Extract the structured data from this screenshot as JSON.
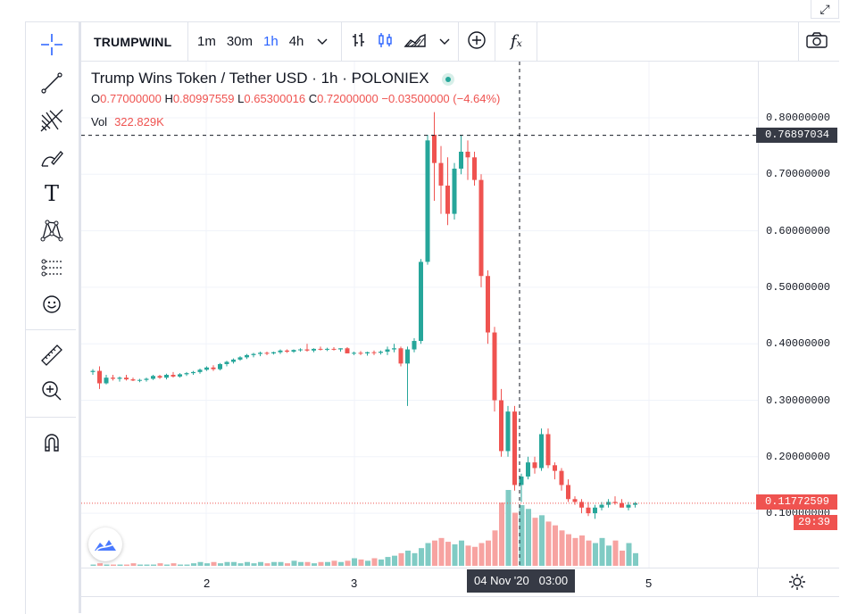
{
  "toolbar": {
    "symbol": "TRUMPWINL",
    "intervals": [
      {
        "label": "1m",
        "active": false
      },
      {
        "label": "30m",
        "active": false
      },
      {
        "label": "1h",
        "active": true
      },
      {
        "label": "4h",
        "active": false
      }
    ],
    "icons": [
      "chevron-down-icon",
      "bar-chart-icon",
      "candlestick-icon",
      "area-chart-icon",
      "chevron-down-icon",
      "add-compare-icon",
      "indicators-fx-icon",
      "camera-icon"
    ],
    "fx_label": "fₓ"
  },
  "sidebar": {
    "tools": [
      "crosshair-icon",
      "trend-line-icon",
      "fib-icon",
      "brush-icon",
      "text-icon",
      "pattern-icon",
      "forecast-icon",
      "emoji-icon",
      "ruler-icon",
      "zoom-in-icon",
      "magnet-icon"
    ],
    "text_tool_label": "T"
  },
  "legend": {
    "title": "Trump Wins Token / Tether USD · 1h · POLONIEX",
    "o_label": "O",
    "o": "0.77000000",
    "h_label": "H",
    "h": "0.80997559",
    "l_label": "L",
    "l": "0.65300016",
    "c_label": "C",
    "c": "0.72000000",
    "change": "−0.03500000 (−4.64%)",
    "vol_label": "Vol",
    "vol": "322.829K"
  },
  "price_axis": {
    "ticks": [
      "0.80000000",
      "0.70000000",
      "0.60000000",
      "0.50000000",
      "0.40000000",
      "0.30000000",
      "0.20000000",
      "0.10000000"
    ],
    "crosshair_price": "0.76897034",
    "last_price": "0.11772599",
    "countdown": "29:39"
  },
  "time_axis": {
    "ticks": [
      "2",
      "3",
      "5"
    ],
    "crosshair_time": "04 Nov '20",
    "crosshair_hour": "03:00"
  },
  "colors": {
    "up": "#26a69a",
    "down": "#ef5350",
    "vol_up": "#80cbc4",
    "vol_down": "#f7a3a1",
    "accent": "#2962ff"
  },
  "chart_data": {
    "type": "candlestick",
    "symbol": "TRUMPWINL",
    "interval": "1h",
    "exchange": "POLONIEX",
    "ylim": [
      0.0,
      0.86
    ],
    "candles": [
      {
        "o": 0.35,
        "h": 0.355,
        "l": 0.345,
        "c": 0.352
      },
      {
        "o": 0.352,
        "h": 0.36,
        "l": 0.32,
        "c": 0.33
      },
      {
        "o": 0.33,
        "h": 0.345,
        "l": 0.328,
        "c": 0.34
      },
      {
        "o": 0.34,
        "h": 0.345,
        "l": 0.335,
        "c": 0.338
      },
      {
        "o": 0.338,
        "h": 0.342,
        "l": 0.333,
        "c": 0.34
      },
      {
        "o": 0.34,
        "h": 0.345,
        "l": 0.335,
        "c": 0.337
      },
      {
        "o": 0.337,
        "h": 0.34,
        "l": 0.334,
        "c": 0.335
      },
      {
        "o": 0.335,
        "h": 0.338,
        "l": 0.332,
        "c": 0.336
      },
      {
        "o": 0.336,
        "h": 0.34,
        "l": 0.333,
        "c": 0.338
      },
      {
        "o": 0.338,
        "h": 0.345,
        "l": 0.336,
        "c": 0.343
      },
      {
        "o": 0.343,
        "h": 0.345,
        "l": 0.338,
        "c": 0.34
      },
      {
        "o": 0.34,
        "h": 0.347,
        "l": 0.337,
        "c": 0.345
      },
      {
        "o": 0.345,
        "h": 0.35,
        "l": 0.34,
        "c": 0.342
      },
      {
        "o": 0.342,
        "h": 0.348,
        "l": 0.34,
        "c": 0.346
      },
      {
        "o": 0.346,
        "h": 0.35,
        "l": 0.343,
        "c": 0.348
      },
      {
        "o": 0.348,
        "h": 0.352,
        "l": 0.345,
        "c": 0.35
      },
      {
        "o": 0.35,
        "h": 0.356,
        "l": 0.347,
        "c": 0.354
      },
      {
        "o": 0.354,
        "h": 0.36,
        "l": 0.352,
        "c": 0.358
      },
      {
        "o": 0.358,
        "h": 0.362,
        "l": 0.352,
        "c": 0.355
      },
      {
        "o": 0.355,
        "h": 0.366,
        "l": 0.353,
        "c": 0.364
      },
      {
        "o": 0.364,
        "h": 0.37,
        "l": 0.36,
        "c": 0.368
      },
      {
        "o": 0.368,
        "h": 0.374,
        "l": 0.365,
        "c": 0.372
      },
      {
        "o": 0.372,
        "h": 0.378,
        "l": 0.37,
        "c": 0.376
      },
      {
        "o": 0.376,
        "h": 0.382,
        "l": 0.373,
        "c": 0.38
      },
      {
        "o": 0.38,
        "h": 0.384,
        "l": 0.376,
        "c": 0.382
      },
      {
        "o": 0.382,
        "h": 0.386,
        "l": 0.378,
        "c": 0.384
      },
      {
        "o": 0.384,
        "h": 0.386,
        "l": 0.38,
        "c": 0.383
      },
      {
        "o": 0.383,
        "h": 0.386,
        "l": 0.381,
        "c": 0.385
      },
      {
        "o": 0.385,
        "h": 0.39,
        "l": 0.382,
        "c": 0.388
      },
      {
        "o": 0.388,
        "h": 0.39,
        "l": 0.384,
        "c": 0.386
      },
      {
        "o": 0.386,
        "h": 0.39,
        "l": 0.384,
        "c": 0.389
      },
      {
        "o": 0.389,
        "h": 0.392,
        "l": 0.386,
        "c": 0.39
      },
      {
        "o": 0.39,
        "h": 0.4,
        "l": 0.386,
        "c": 0.388
      },
      {
        "o": 0.388,
        "h": 0.392,
        "l": 0.385,
        "c": 0.391
      },
      {
        "o": 0.391,
        "h": 0.395,
        "l": 0.388,
        "c": 0.39
      },
      {
        "o": 0.39,
        "h": 0.393,
        "l": 0.387,
        "c": 0.391
      },
      {
        "o": 0.391,
        "h": 0.394,
        "l": 0.388,
        "c": 0.39
      },
      {
        "o": 0.39,
        "h": 0.392,
        "l": 0.386,
        "c": 0.392
      },
      {
        "o": 0.392,
        "h": 0.394,
        "l": 0.384,
        "c": 0.383
      },
      {
        "o": 0.383,
        "h": 0.386,
        "l": 0.38,
        "c": 0.384
      },
      {
        "o": 0.384,
        "h": 0.387,
        "l": 0.38,
        "c": 0.383
      },
      {
        "o": 0.383,
        "h": 0.386,
        "l": 0.379,
        "c": 0.385
      },
      {
        "o": 0.385,
        "h": 0.388,
        "l": 0.38,
        "c": 0.384
      },
      {
        "o": 0.384,
        "h": 0.388,
        "l": 0.381,
        "c": 0.386
      },
      {
        "o": 0.386,
        "h": 0.395,
        "l": 0.38,
        "c": 0.39
      },
      {
        "o": 0.39,
        "h": 0.4,
        "l": 0.385,
        "c": 0.392
      },
      {
        "o": 0.392,
        "h": 0.395,
        "l": 0.36,
        "c": 0.365
      },
      {
        "o": 0.365,
        "h": 0.395,
        "l": 0.29,
        "c": 0.39
      },
      {
        "o": 0.39,
        "h": 0.41,
        "l": 0.385,
        "c": 0.405
      },
      {
        "o": 0.405,
        "h": 0.55,
        "l": 0.4,
        "c": 0.545
      },
      {
        "o": 0.545,
        "h": 0.77,
        "l": 0.54,
        "c": 0.76
      },
      {
        "o": 0.77,
        "h": 0.81,
        "l": 0.653,
        "c": 0.72
      },
      {
        "o": 0.72,
        "h": 0.75,
        "l": 0.63,
        "c": 0.68
      },
      {
        "o": 0.68,
        "h": 0.73,
        "l": 0.61,
        "c": 0.63
      },
      {
        "o": 0.63,
        "h": 0.72,
        "l": 0.62,
        "c": 0.71
      },
      {
        "o": 0.71,
        "h": 0.77,
        "l": 0.7,
        "c": 0.74
      },
      {
        "o": 0.74,
        "h": 0.76,
        "l": 0.69,
        "c": 0.73
      },
      {
        "o": 0.73,
        "h": 0.74,
        "l": 0.68,
        "c": 0.69
      },
      {
        "o": 0.69,
        "h": 0.7,
        "l": 0.5,
        "c": 0.52
      },
      {
        "o": 0.52,
        "h": 0.53,
        "l": 0.4,
        "c": 0.42
      },
      {
        "o": 0.42,
        "h": 0.43,
        "l": 0.28,
        "c": 0.3
      },
      {
        "o": 0.3,
        "h": 0.32,
        "l": 0.2,
        "c": 0.21
      },
      {
        "o": 0.21,
        "h": 0.29,
        "l": 0.2,
        "c": 0.28
      },
      {
        "o": 0.28,
        "h": 0.29,
        "l": 0.14,
        "c": 0.15
      },
      {
        "o": 0.15,
        "h": 0.17,
        "l": 0.12,
        "c": 0.165
      },
      {
        "o": 0.165,
        "h": 0.2,
        "l": 0.16,
        "c": 0.19
      },
      {
        "o": 0.19,
        "h": 0.2,
        "l": 0.17,
        "c": 0.18
      },
      {
        "o": 0.18,
        "h": 0.25,
        "l": 0.175,
        "c": 0.24
      },
      {
        "o": 0.24,
        "h": 0.25,
        "l": 0.18,
        "c": 0.185
      },
      {
        "o": 0.185,
        "h": 0.19,
        "l": 0.16,
        "c": 0.175
      },
      {
        "o": 0.175,
        "h": 0.18,
        "l": 0.14,
        "c": 0.15
      },
      {
        "o": 0.15,
        "h": 0.16,
        "l": 0.12,
        "c": 0.125
      },
      {
        "o": 0.125,
        "h": 0.13,
        "l": 0.115,
        "c": 0.12
      },
      {
        "o": 0.12,
        "h": 0.125,
        "l": 0.1,
        "c": 0.11
      },
      {
        "o": 0.11,
        "h": 0.12,
        "l": 0.095,
        "c": 0.1
      },
      {
        "o": 0.1,
        "h": 0.115,
        "l": 0.09,
        "c": 0.11
      },
      {
        "o": 0.11,
        "h": 0.12,
        "l": 0.105,
        "c": 0.115
      },
      {
        "o": 0.115,
        "h": 0.125,
        "l": 0.11,
        "c": 0.12
      },
      {
        "o": 0.12,
        "h": 0.13,
        "l": 0.115,
        "c": 0.118
      },
      {
        "o": 0.118,
        "h": 0.125,
        "l": 0.112,
        "c": 0.11
      },
      {
        "o": 0.11,
        "h": 0.12,
        "l": 0.105,
        "c": 0.115
      },
      {
        "o": 0.115,
        "h": 0.12,
        "l": 0.11,
        "c": 0.118
      }
    ],
    "volumes": [
      1,
      2,
      1,
      1,
      1,
      1,
      2,
      1,
      1,
      1,
      2,
      1,
      2,
      1,
      1,
      2,
      3,
      2,
      3,
      2,
      3,
      3,
      2,
      3,
      2,
      3,
      2,
      3,
      3,
      2,
      4,
      3,
      3,
      2,
      3,
      3,
      4,
      3,
      4,
      6,
      5,
      4,
      6,
      5,
      7,
      8,
      10,
      12,
      10,
      14,
      18,
      20,
      22,
      19,
      17,
      20,
      16,
      15,
      18,
      20,
      28,
      50,
      60,
      42,
      48,
      45,
      38,
      40,
      35,
      32,
      28,
      25,
      22,
      24,
      20,
      18,
      22,
      16,
      20,
      12,
      18,
      10
    ],
    "vol_max": 60
  }
}
